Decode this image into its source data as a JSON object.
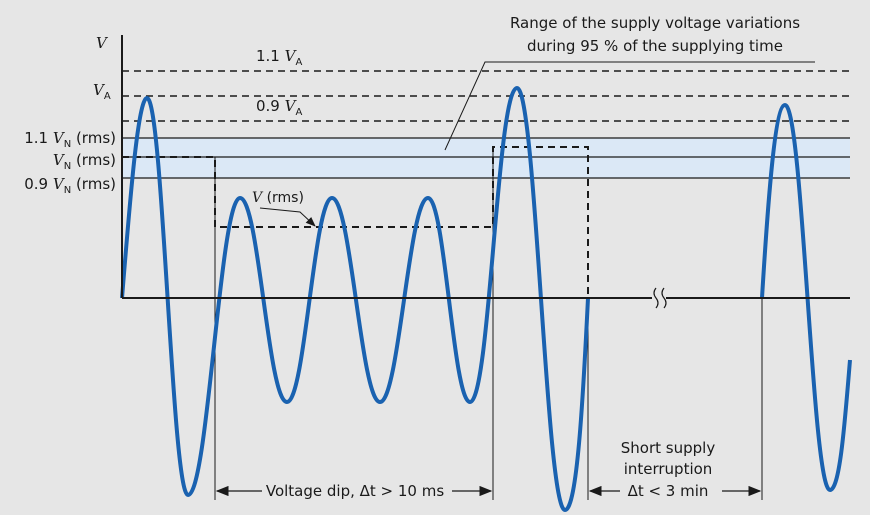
{
  "axis_label": "V",
  "levels": {
    "upper_va": {
      "prefix": "1.1 ",
      "var": "V",
      "sub": "A"
    },
    "va": {
      "var": "V",
      "sub": "A"
    },
    "lower_va": {
      "prefix": "0.9 ",
      "var": "V",
      "sub": "A"
    },
    "upper_vn": {
      "prefix": "1.1 ",
      "var": "V",
      "sub": "N",
      "suffix": " (rms)"
    },
    "vn": {
      "var": "V",
      "sub": "N",
      "suffix": " (rms)"
    },
    "lower_vn": {
      "prefix": "0.9 ",
      "var": "V",
      "sub": "N",
      "suffix": " (rms)"
    }
  },
  "rms_label": {
    "var": "V",
    "suffix": " (rms)"
  },
  "range_note": [
    "Range of the supply voltage variations",
    "during 95 % of the supplying time"
  ],
  "voltage_dip": "Voltage dip, Δt > 10 ms",
  "interruption": [
    "Short supply",
    "interruption",
    "Δt < 3 min"
  ]
}
